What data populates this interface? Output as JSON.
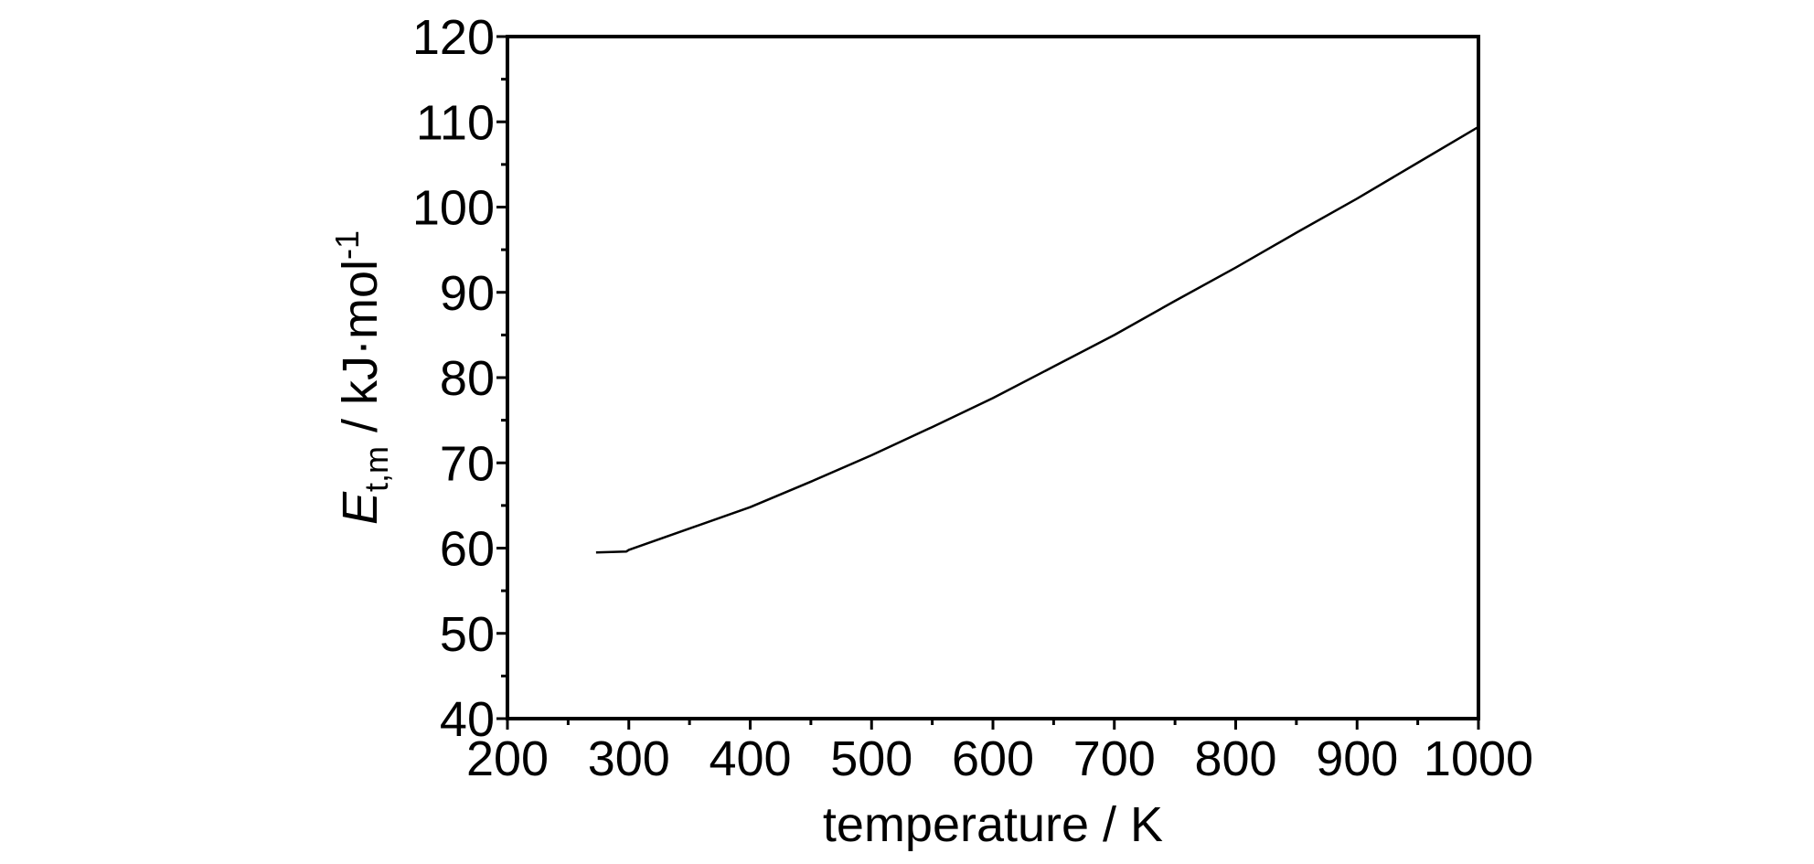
{
  "chart_data": {
    "type": "line",
    "title": "",
    "xlabel": "temperature / K",
    "ylabel": {
      "symbol": "E",
      "subscript": "t,m",
      "unit": " / kJ·mol",
      "superscript": "-1"
    },
    "xlim": [
      200,
      1000
    ],
    "ylim": [
      40,
      120
    ],
    "x_major_ticks": [
      200,
      300,
      400,
      500,
      600,
      700,
      800,
      900,
      1000
    ],
    "x_tick_labels": [
      "200",
      "300",
      "400",
      "500",
      "600",
      "700",
      "800",
      "900",
      "1000"
    ],
    "y_major_ticks": [
      40,
      50,
      60,
      70,
      80,
      90,
      100,
      110,
      120
    ],
    "y_tick_labels": [
      "40",
      "50",
      "60",
      "70",
      "80",
      "90",
      "100",
      "110",
      "120"
    ],
    "x_minor_step": 50,
    "y_minor_step": 5,
    "grid": false,
    "legend": "none",
    "series": [
      {
        "color": "#000000",
        "x": [
          273,
          298,
          300,
          350,
          400,
          450,
          500,
          550,
          600,
          650,
          700,
          750,
          800,
          850,
          900,
          950,
          1000
        ],
        "y": [
          59.5,
          59.6,
          59.8,
          62.3,
          64.8,
          67.8,
          70.9,
          74.2,
          77.6,
          81.3,
          85.0,
          89.0,
          92.9,
          97.0,
          101.0,
          105.2,
          109.4
        ]
      }
    ]
  }
}
